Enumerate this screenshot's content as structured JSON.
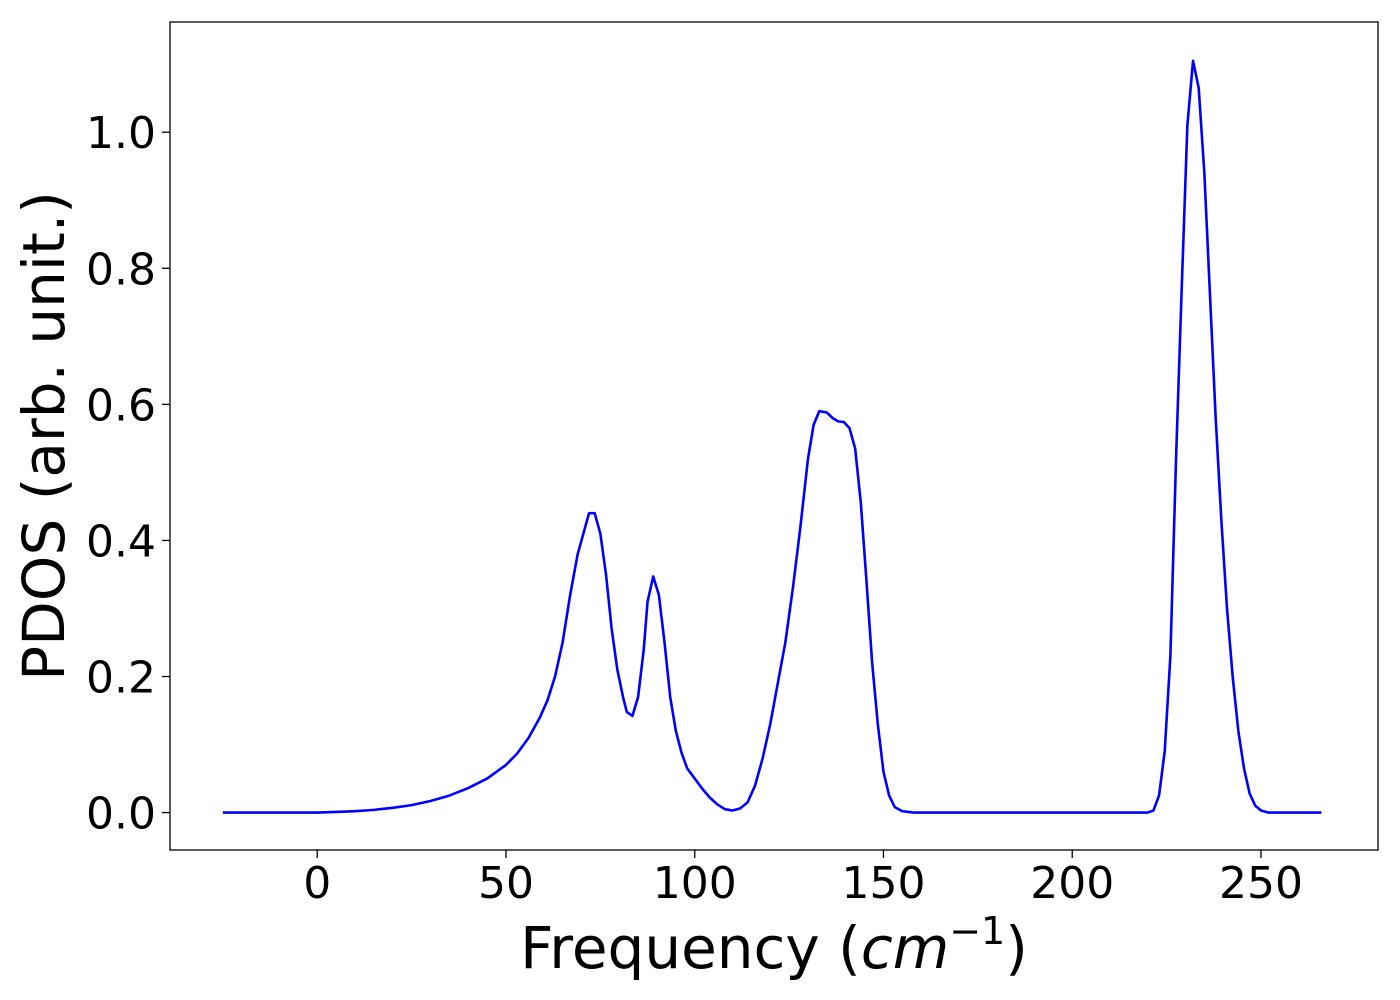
{
  "chart_data": {
    "type": "line",
    "title": "",
    "xlabel_text": "Frequency (",
    "xlabel_math_base": "cm",
    "xlabel_math_sup": "−1",
    "xlabel_close": ")",
    "ylabel": "PDOS (arb. unit.)",
    "xlim": [
      -39,
      281
    ],
    "ylim": [
      -0.055,
      1.162
    ],
    "xticks": [
      0,
      50,
      100,
      150,
      200,
      250
    ],
    "xtick_labels": [
      "0",
      "50",
      "100",
      "150",
      "200",
      "250"
    ],
    "yticks": [
      0.0,
      0.2,
      0.4,
      0.6,
      0.8,
      1.0
    ],
    "ytick_labels": [
      "0.0",
      "0.2",
      "0.4",
      "0.6",
      "0.8",
      "1.0"
    ],
    "grid": false,
    "series": [
      {
        "color": "#0000ff",
        "points": [
          [
            -25,
            0.0
          ],
          [
            0,
            0.0
          ],
          [
            5,
            0.001
          ],
          [
            10,
            0.002
          ],
          [
            15,
            0.004
          ],
          [
            20,
            0.007
          ],
          [
            25,
            0.011
          ],
          [
            30,
            0.017
          ],
          [
            35,
            0.025
          ],
          [
            40,
            0.036
          ],
          [
            45,
            0.05
          ],
          [
            50,
            0.07
          ],
          [
            53,
            0.087
          ],
          [
            56,
            0.11
          ],
          [
            59,
            0.14
          ],
          [
            61,
            0.165
          ],
          [
            63,
            0.2
          ],
          [
            65,
            0.25
          ],
          [
            67,
            0.32
          ],
          [
            69,
            0.38
          ],
          [
            71,
            0.42
          ],
          [
            72,
            0.44
          ],
          [
            73.5,
            0.44
          ],
          [
            75,
            0.41
          ],
          [
            76.5,
            0.35
          ],
          [
            78,
            0.27
          ],
          [
            79.5,
            0.21
          ],
          [
            81,
            0.17
          ],
          [
            82,
            0.148
          ],
          [
            83.5,
            0.142
          ],
          [
            85,
            0.17
          ],
          [
            86.5,
            0.24
          ],
          [
            87.5,
            0.31
          ],
          [
            89,
            0.347
          ],
          [
            90.5,
            0.32
          ],
          [
            92,
            0.25
          ],
          [
            93.5,
            0.17
          ],
          [
            95,
            0.12
          ],
          [
            96.5,
            0.088
          ],
          [
            98,
            0.065
          ],
          [
            100,
            0.05
          ],
          [
            102,
            0.035
          ],
          [
            104,
            0.022
          ],
          [
            106,
            0.012
          ],
          [
            108,
            0.005
          ],
          [
            110,
            0.003
          ],
          [
            112,
            0.006
          ],
          [
            114,
            0.015
          ],
          [
            116,
            0.04
          ],
          [
            118,
            0.08
          ],
          [
            120,
            0.13
          ],
          [
            122,
            0.19
          ],
          [
            124,
            0.25
          ],
          [
            126,
            0.33
          ],
          [
            128,
            0.42
          ],
          [
            130,
            0.52
          ],
          [
            131.5,
            0.57
          ],
          [
            133,
            0.59
          ],
          [
            135,
            0.588
          ],
          [
            136.5,
            0.58
          ],
          [
            138,
            0.575
          ],
          [
            139.5,
            0.574
          ],
          [
            141,
            0.565
          ],
          [
            142.5,
            0.535
          ],
          [
            144,
            0.455
          ],
          [
            145.5,
            0.34
          ],
          [
            147,
            0.22
          ],
          [
            148.5,
            0.13
          ],
          [
            150,
            0.06
          ],
          [
            151.5,
            0.025
          ],
          [
            153,
            0.008
          ],
          [
            155,
            0.002
          ],
          [
            158,
            0.0
          ],
          [
            175,
            0.0
          ],
          [
            200,
            0.0
          ],
          [
            220,
            0.0
          ],
          [
            221.5,
            0.003
          ],
          [
            223,
            0.025
          ],
          [
            224.5,
            0.09
          ],
          [
            226,
            0.23
          ],
          [
            227.5,
            0.52
          ],
          [
            229,
            0.77
          ],
          [
            230.5,
            1.01
          ],
          [
            232,
            1.105
          ],
          [
            233.5,
            1.065
          ],
          [
            235,
            0.94
          ],
          [
            236.5,
            0.76
          ],
          [
            238,
            0.58
          ],
          [
            239.5,
            0.43
          ],
          [
            241,
            0.3
          ],
          [
            242.5,
            0.2
          ],
          [
            244,
            0.12
          ],
          [
            245.5,
            0.065
          ],
          [
            247,
            0.028
          ],
          [
            248.5,
            0.01
          ],
          [
            250,
            0.003
          ],
          [
            252,
            0.0
          ],
          [
            260,
            0.0
          ],
          [
            266,
            0.0
          ]
        ]
      }
    ]
  }
}
